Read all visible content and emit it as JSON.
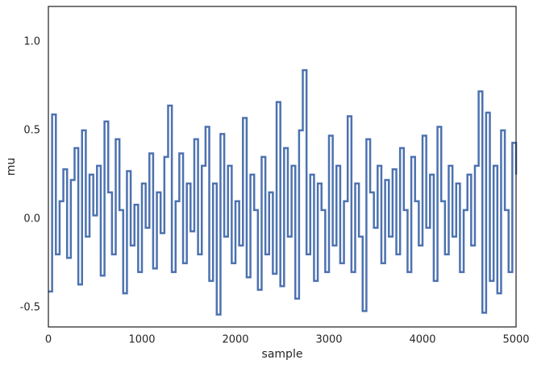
{
  "chart_data": {
    "type": "line",
    "xlabel": "sample",
    "ylabel": "mu",
    "x": [
      0,
      40,
      80,
      120,
      160,
      200,
      240,
      280,
      320,
      360,
      400,
      440,
      480,
      520,
      560,
      600,
      640,
      680,
      720,
      760,
      800,
      840,
      880,
      920,
      960,
      1000,
      1040,
      1080,
      1120,
      1160,
      1200,
      1240,
      1280,
      1320,
      1360,
      1400,
      1440,
      1480,
      1520,
      1560,
      1600,
      1640,
      1680,
      1720,
      1760,
      1800,
      1840,
      1880,
      1920,
      1960,
      2000,
      2040,
      2080,
      2120,
      2160,
      2200,
      2240,
      2280,
      2320,
      2360,
      2400,
      2440,
      2480,
      2520,
      2560,
      2600,
      2640,
      2680,
      2720,
      2760,
      2800,
      2840,
      2880,
      2920,
      2960,
      3000,
      3040,
      3080,
      3120,
      3160,
      3200,
      3240,
      3280,
      3320,
      3360,
      3400,
      3440,
      3480,
      3520,
      3560,
      3600,
      3640,
      3680,
      3720,
      3760,
      3800,
      3840,
      3880,
      3920,
      3960,
      4000,
      4040,
      4080,
      4120,
      4160,
      4200,
      4240,
      4280,
      4320,
      4360,
      4400,
      4440,
      4480,
      4520,
      4560,
      4600,
      4640,
      4680,
      4720,
      4760,
      4800,
      4840,
      4880,
      4920,
      4960,
      5000
    ],
    "series": [
      {
        "color": "#4c72b0",
        "values": [
          -0.41,
          0.59,
          -0.2,
          0.1,
          0.28,
          -0.22,
          0.22,
          0.4,
          -0.37,
          0.5,
          -0.1,
          0.25,
          0.02,
          0.3,
          -0.32,
          0.55,
          0.15,
          -0.2,
          0.45,
          0.05,
          -0.42,
          0.27,
          -0.15,
          0.08,
          -0.3,
          0.2,
          -0.05,
          0.37,
          -0.28,
          0.15,
          -0.08,
          0.35,
          0.64,
          -0.3,
          0.1,
          0.37,
          -0.25,
          0.2,
          -0.07,
          0.45,
          -0.2,
          0.3,
          0.52,
          -0.35,
          0.2,
          -0.54,
          0.48,
          -0.1,
          0.3,
          -0.25,
          0.1,
          -0.15,
          0.57,
          -0.33,
          0.25,
          0.05,
          -0.4,
          0.35,
          -0.2,
          0.15,
          -0.31,
          0.66,
          -0.38,
          0.4,
          -0.1,
          0.3,
          -0.45,
          0.5,
          0.84,
          -0.2,
          0.25,
          -0.35,
          0.2,
          0.05,
          -0.3,
          0.47,
          -0.15,
          0.3,
          -0.25,
          0.1,
          0.58,
          -0.3,
          0.2,
          -0.1,
          -0.52,
          0.45,
          0.15,
          -0.05,
          0.3,
          -0.25,
          0.22,
          -0.1,
          0.28,
          -0.2,
          0.4,
          0.05,
          -0.3,
          0.35,
          0.1,
          -0.15,
          0.47,
          -0.05,
          0.25,
          -0.35,
          0.52,
          0.1,
          -0.2,
          0.3,
          -0.1,
          0.2,
          -0.3,
          0.05,
          0.25,
          -0.15,
          0.3,
          0.72,
          -0.53,
          0.6,
          -0.35,
          0.3,
          -0.42,
          0.5,
          0.05,
          -0.3,
          0.43,
          0.25
        ]
      }
    ],
    "step": true,
    "xlim": [
      0,
      5000
    ],
    "xticks": [
      0,
      1000,
      2000,
      3000,
      4000,
      5000
    ],
    "ylim": [
      -0.61,
      1.2
    ],
    "yticks": [
      -0.5,
      {
        "value": 0,
        "label": "0.0"
      },
      0.5,
      {
        "value": 1,
        "label": "1.0"
      }
    ]
  }
}
